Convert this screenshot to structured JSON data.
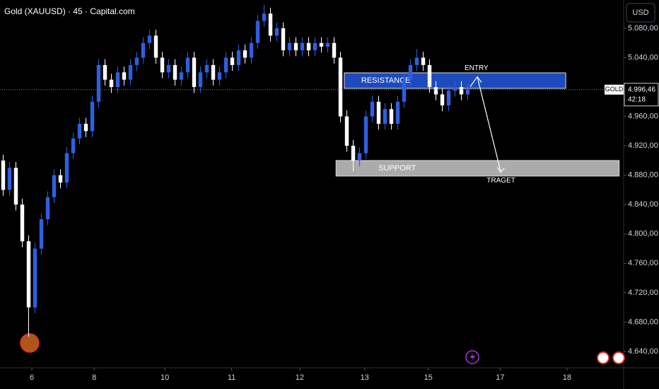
{
  "chart_data": {
    "type": "candlestick",
    "title": "Gold (XAUUSD) · 45 · Capital.com",
    "currency": "USD",
    "symbol": "GOLD",
    "last_price": {
      "value": 4996.46,
      "label": "4.996,46"
    },
    "countdown": "42:18",
    "up_color": "#2f5fe0",
    "down_color": "#ffffff",
    "xlim": [
      -0.5,
      97.5
    ],
    "ylim": [
      4617.8,
      5118.5
    ],
    "xticks": [
      {
        "value": 4.5,
        "label": "6"
      },
      {
        "value": 14.3,
        "label": "8"
      },
      {
        "value": 25.4,
        "label": "10"
      },
      {
        "value": 35.9,
        "label": "11"
      },
      {
        "value": 46.6,
        "label": "12"
      },
      {
        "value": 56.8,
        "label": "13"
      },
      {
        "value": 66.8,
        "label": "15"
      },
      {
        "value": 78.1,
        "label": "17"
      },
      {
        "value": 88.6,
        "label": "18"
      }
    ],
    "yticks": [
      {
        "value": 4640,
        "label": "4.640,00"
      },
      {
        "value": 4680,
        "label": "4.680,00"
      },
      {
        "value": 4720,
        "label": "4.720,00"
      },
      {
        "value": 4760,
        "label": "4.760,00"
      },
      {
        "value": 4800,
        "label": "4.800,00"
      },
      {
        "value": 4840,
        "label": "4.840,00"
      },
      {
        "value": 4880,
        "label": "4.880,00"
      },
      {
        "value": 4920,
        "label": "4.920,00"
      },
      {
        "value": 4960,
        "label": "4.960,00"
      },
      {
        "value": 5040,
        "label": "5.040,00"
      },
      {
        "value": 5080,
        "label": "5.080,00"
      }
    ],
    "open": [
      4900,
      4860,
      4890,
      4840,
      4790,
      4700,
      4780,
      4820,
      4850,
      4880,
      4870,
      4910,
      4930,
      4950,
      4940,
      4980,
      5030,
      5010,
      5000,
      5020,
      5010,
      5030,
      5040,
      5060,
      5070,
      5040,
      5020,
      5030,
      5010,
      5020,
      5040,
      5000,
      5020,
      5030,
      5010,
      5020,
      5040,
      5030,
      5050,
      5040,
      5060,
      5090,
      5100,
      5070,
      5080,
      5050,
      5060,
      5050,
      5060,
      5050,
      5060,
      5055,
      5060,
      5040,
      4960,
      4920,
      4900,
      4910,
      4960,
      4980,
      4950,
      4970,
      4950,
      4980,
      5010,
      5030,
      5040,
      5030,
      5000,
      4990,
      4975,
      4995,
      5000,
      4990
    ],
    "high": [
      4908,
      4898,
      4898,
      4848,
      4798,
      4788,
      4828,
      4858,
      4888,
      4888,
      4918,
      4938,
      4958,
      4958,
      4988,
      5038,
      5038,
      5018,
      5028,
      5028,
      5038,
      5048,
      5068,
      5078,
      5078,
      5048,
      5038,
      5038,
      5028,
      5048,
      5048,
      5028,
      5038,
      5038,
      5028,
      5048,
      5048,
      5058,
      5058,
      5068,
      5098,
      5112,
      5108,
      5088,
      5088,
      5068,
      5068,
      5068,
      5068,
      5068,
      5068,
      5068,
      5068,
      5048,
      4968,
      4928,
      4918,
      4968,
      4988,
      4988,
      4978,
      4978,
      4988,
      5018,
      5038,
      5052,
      5048,
      5038,
      5008,
      4998,
      5003,
      5008,
      5008,
      5004
    ],
    "low": [
      4852,
      4852,
      4832,
      4782,
      4660,
      4692,
      4772,
      4812,
      4842,
      4862,
      4862,
      4902,
      4922,
      4932,
      4932,
      4972,
      5002,
      4992,
      4992,
      5002,
      5002,
      5022,
      5032,
      5052,
      5032,
      5012,
      5012,
      5002,
      5002,
      5012,
      4992,
      4992,
      5012,
      5002,
      5002,
      5012,
      5022,
      5022,
      5032,
      5032,
      5052,
      5082,
      5062,
      5062,
      5042,
      5042,
      5042,
      5042,
      5042,
      5042,
      5047,
      5047,
      5032,
      4952,
      4912,
      4885,
      4892,
      4902,
      4952,
      4942,
      4942,
      4942,
      4942,
      4972,
      5002,
      5022,
      5022,
      4992,
      4982,
      4967,
      4967,
      4987,
      4982,
      4982
    ],
    "close": [
      4860,
      4890,
      4840,
      4790,
      4700,
      4780,
      4820,
      4850,
      4880,
      4870,
      4910,
      4930,
      4950,
      4940,
      4980,
      5030,
      5010,
      5000,
      5020,
      5010,
      5030,
      5040,
      5060,
      5070,
      5040,
      5020,
      5030,
      5010,
      5020,
      5040,
      5000,
      5020,
      5030,
      5010,
      5020,
      5040,
      5030,
      5050,
      5040,
      5060,
      5090,
      5100,
      5070,
      5080,
      5050,
      5060,
      5050,
      5060,
      5050,
      5060,
      5055,
      5060,
      5040,
      4960,
      4920,
      4900,
      4910,
      4960,
      4980,
      4950,
      4970,
      4950,
      4980,
      5010,
      5030,
      5040,
      5030,
      5000,
      4990,
      4975,
      4995,
      5000,
      4990,
      4996.46
    ],
    "zones": [
      {
        "label": "RESISTANCE",
        "color": "#1f4fc8",
        "x_range": [
          53.6,
          88.4
        ],
        "y_range": [
          4998.2,
          5019.3
        ]
      },
      {
        "label": "SUPPORT",
        "color": "#b4b4b4",
        "x_range": [
          52.3,
          96.8
        ],
        "y_range": [
          4878.8,
          4900
        ]
      }
    ],
    "arrow": {
      "x": [
        74.5,
        78.2
      ],
      "y": [
        5014,
        4884
      ]
    },
    "entry_label": "ENTRY",
    "target_label": "TRAGET"
  }
}
